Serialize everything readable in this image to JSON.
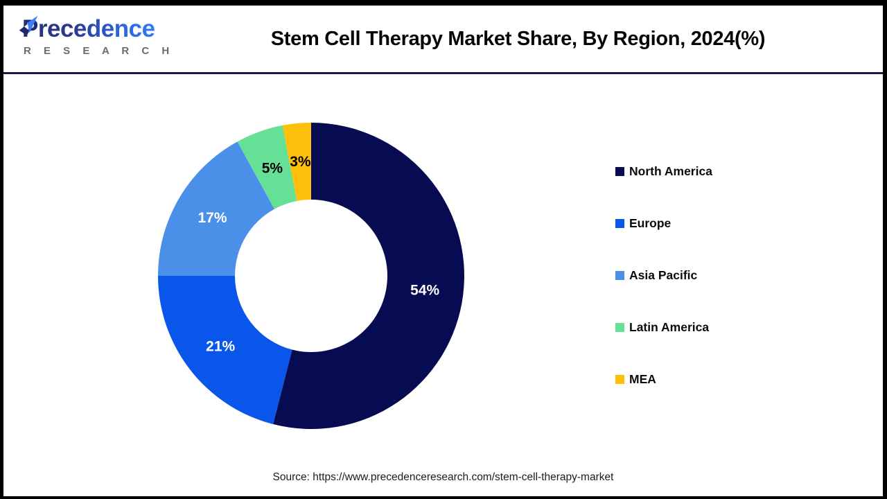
{
  "page": {
    "header": {
      "logo": {
        "brand_initial": "P",
        "brand_rest": "recedence",
        "subtitle": "R E S E A R C H"
      },
      "title": "Stem Cell Therapy Market Share, By Region, 2024(%)"
    },
    "footer": {
      "source": "Source: https://www.precedenceresearch.com/stem-cell-therapy-market"
    }
  },
  "colors": {
    "frame_border": "#000000",
    "header_divider": "#1b1c4e",
    "logo_navy": "#202c78",
    "logo_blue": "#2f7bf6",
    "logo_gray": "#6a6b6e",
    "title_text": "#050505"
  },
  "chart_data": {
    "type": "pie",
    "donut": true,
    "title": "Stem Cell Therapy Market Share, By Region, 2024(%)",
    "categories": [
      "North America",
      "Europe",
      "Asia Pacific",
      "Latin America",
      "MEA"
    ],
    "values": [
      54,
      21,
      17,
      5,
      3
    ],
    "labels": [
      "54%",
      "21%",
      "17%",
      "5%",
      "3%"
    ],
    "unit": "%",
    "colors": [
      "#070c52",
      "#0a56eb",
      "#4a90e8",
      "#66e096",
      "#fcc00d"
    ],
    "label_colors": [
      "#ffffff",
      "#ffffff",
      "#ffffff",
      "#000000",
      "#000000"
    ],
    "start_angle_deg": 0,
    "direction": "clockwise",
    "outer_radius": 221,
    "inner_radius": 110,
    "legend_position": "right"
  }
}
